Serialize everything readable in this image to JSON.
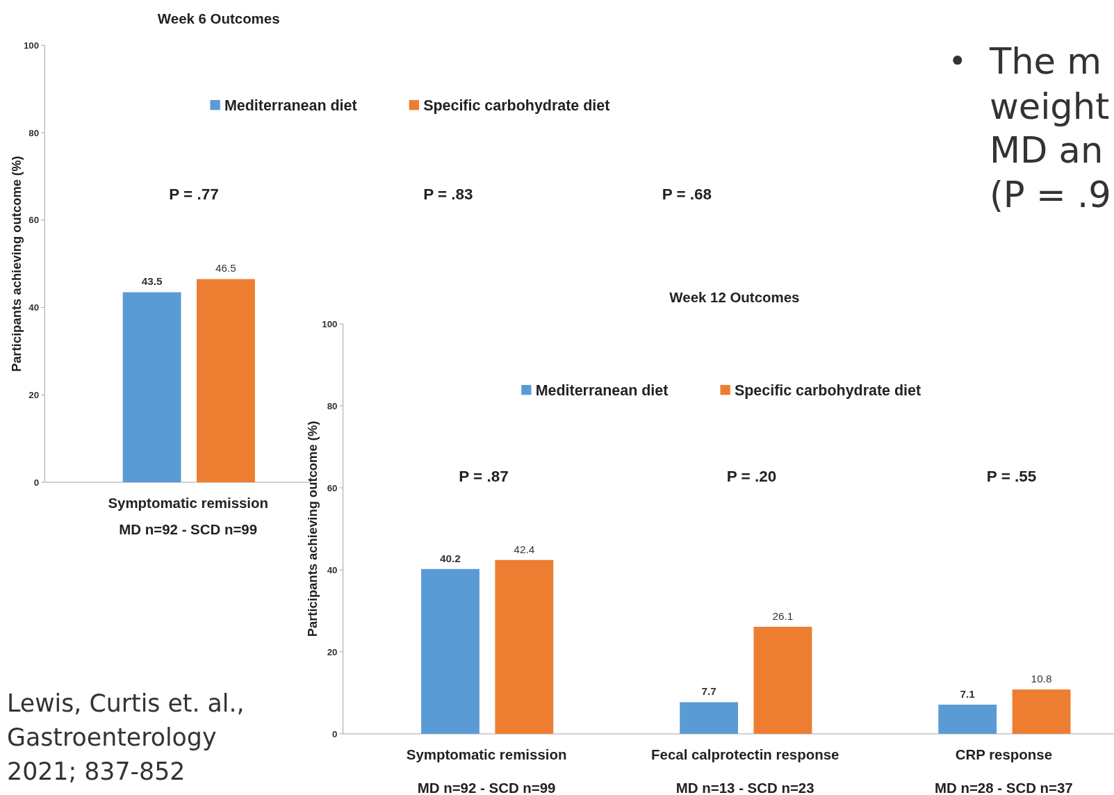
{
  "chart_data": [
    {
      "type": "bar",
      "title": "Week 6 Outcomes",
      "ylabel": "Participants achieving outcome (%)",
      "categories": [
        "Symptomatic remission\nMD n=92 - SCD n=99"
      ],
      "series": [
        {
          "name": "Mediterranean diet",
          "color": "#5b9bd5",
          "values": [
            43.5
          ]
        },
        {
          "name": "Specific carbohydrate diet",
          "color": "#ed7d31",
          "values": [
            46.5
          ]
        }
      ],
      "ylim": [
        0,
        100
      ],
      "yticks": [
        0,
        20,
        40,
        60,
        80,
        100
      ],
      "grid": false,
      "legend": "top",
      "data_labels": true,
      "annotations": [
        "P = .77",
        "P = .83",
        "P = .68"
      ]
    },
    {
      "type": "bar",
      "title": "Week 12 Outcomes",
      "ylabel": "Participants achieving outcome (%)",
      "categories": [
        "Symptomatic remission\nMD n=92 - SCD n=99",
        "Fecal calprotectin response\nMD n=13 - SCD n=23",
        "CRP response\nMD n=28 - SCD n=37"
      ],
      "series": [
        {
          "name": "Mediterranean diet",
          "color": "#5b9bd5",
          "values": [
            40.2,
            7.7,
            7.1
          ]
        },
        {
          "name": "Specific carbohydrate diet",
          "color": "#ed7d31",
          "values": [
            42.4,
            26.1,
            10.8
          ]
        }
      ],
      "ylim": [
        0,
        100
      ],
      "yticks": [
        0,
        20,
        40,
        60,
        80,
        100
      ],
      "grid": false,
      "legend": "top",
      "data_labels": true,
      "annotations": [
        "P = .87",
        "P = .20",
        "P = .55",
        "•",
        "The m",
        "weight",
        "MD an",
        "(P = .9",
        "Lewis, Curtis et. al.,",
        "Gastroenterology",
        "2021; 837-852"
      ]
    }
  ]
}
